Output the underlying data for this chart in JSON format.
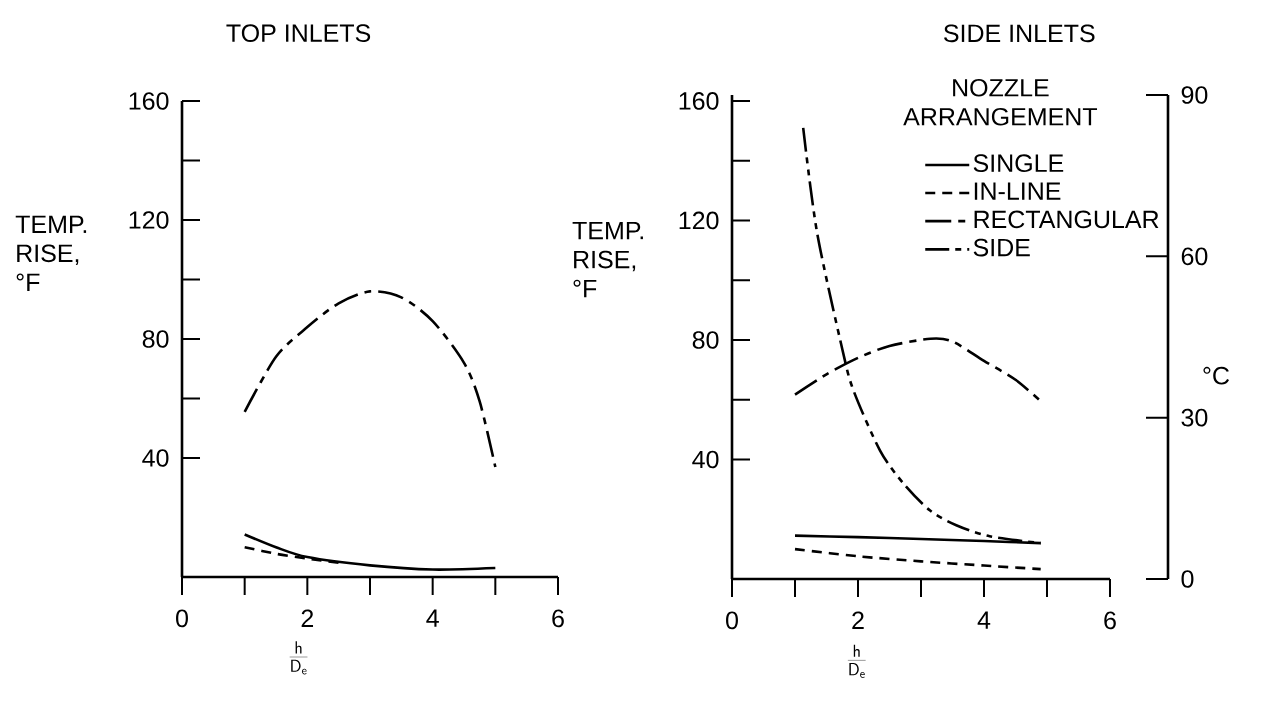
{
  "chart_data": [
    {
      "type": "line",
      "title": "TOP INLETS",
      "xlabel": "\\frac{\\mathsf{h}}{\\mathsf{D}_{\\mathsf{e}}}",
      "ylabel": "TEMP. RISE, °F",
      "xlim": [
        0,
        6
      ],
      "xticks": [
        0,
        2,
        4,
        6
      ],
      "ylim": [
        0,
        160
      ],
      "yticks": [
        40,
        80,
        120,
        160
      ],
      "series": [
        {
          "color": "#000000",
          "line_style": "solid",
          "x": [
            1,
            1.5,
            2,
            3,
            4,
            5
          ],
          "values": [
            14.3,
            10,
            6.7,
            3.9,
            2.5,
            3
          ]
        },
        {
          "color": "#000000",
          "line_style": "dashed",
          "x": [
            1,
            1.5,
            2,
            2.5
          ],
          "values": [
            10,
            7.8,
            6.2,
            4.8
          ]
        },
        {
          "color": "#000000",
          "line_style": "dashdotted",
          "x": [
            1,
            1.5,
            2,
            2.5,
            3,
            3.5,
            4,
            4.5,
            4.75,
            5
          ],
          "values": [
            55.5,
            74,
            84,
            92,
            96,
            94,
            86,
            72,
            59,
            37
          ]
        }
      ]
    },
    {
      "type": "line",
      "title": "SIDE INLETS",
      "xlabel": "\\frac{\\mathsf{h}}{\\mathsf{D}_{\\mathsf{e}}}",
      "ylabel": "TEMP. RISE, °F",
      "y2label": "°C",
      "legend_title": "NOZZLE ARRANGEMENT",
      "legend": "top right",
      "xlim": [
        0,
        6
      ],
      "xticks": [
        0,
        2,
        4,
        6
      ],
      "ylim": [
        0,
        162
      ],
      "yticks": [
        40,
        80,
        120,
        160
      ],
      "y2lim": [
        0,
        90
      ],
      "y2ticks": [
        0,
        30,
        60,
        90
      ],
      "series": [
        {
          "name": "SINGLE",
          "color": "#000000",
          "line_style": "solid",
          "x": [
            1,
            2,
            3,
            4,
            4.9
          ],
          "values": [
            14.5,
            14,
            13.4,
            12.7,
            12
          ]
        },
        {
          "name": "IN-LINE",
          "color": "#000000",
          "line_style": "dashed",
          "x": [
            1,
            2,
            3,
            4,
            4.9
          ],
          "values": [
            10,
            7.6,
            5.9,
            4.5,
            3.3
          ]
        },
        {
          "name": "RECTANGULAR",
          "color": "#000000",
          "line_style": "dashdotted",
          "x": [
            1,
            1.5,
            2,
            2.5,
            3.15,
            3.5,
            4,
            4.5,
            4.9
          ],
          "values": [
            61.7,
            68.5,
            74,
            78,
            80.4,
            79.5,
            73,
            66.7,
            59.5
          ]
        },
        {
          "name": "SIDE",
          "color": "#000000",
          "line_style": "dashdotdotted",
          "x": [
            1.13,
            1.35,
            1.75,
            1.93,
            2.35,
            2.72,
            3.14,
            3.56,
            4.09,
            4.9
          ],
          "values": [
            151,
            116,
            77,
            63,
            43,
            32,
            23,
            18,
            14.3,
            12
          ]
        }
      ]
    }
  ]
}
